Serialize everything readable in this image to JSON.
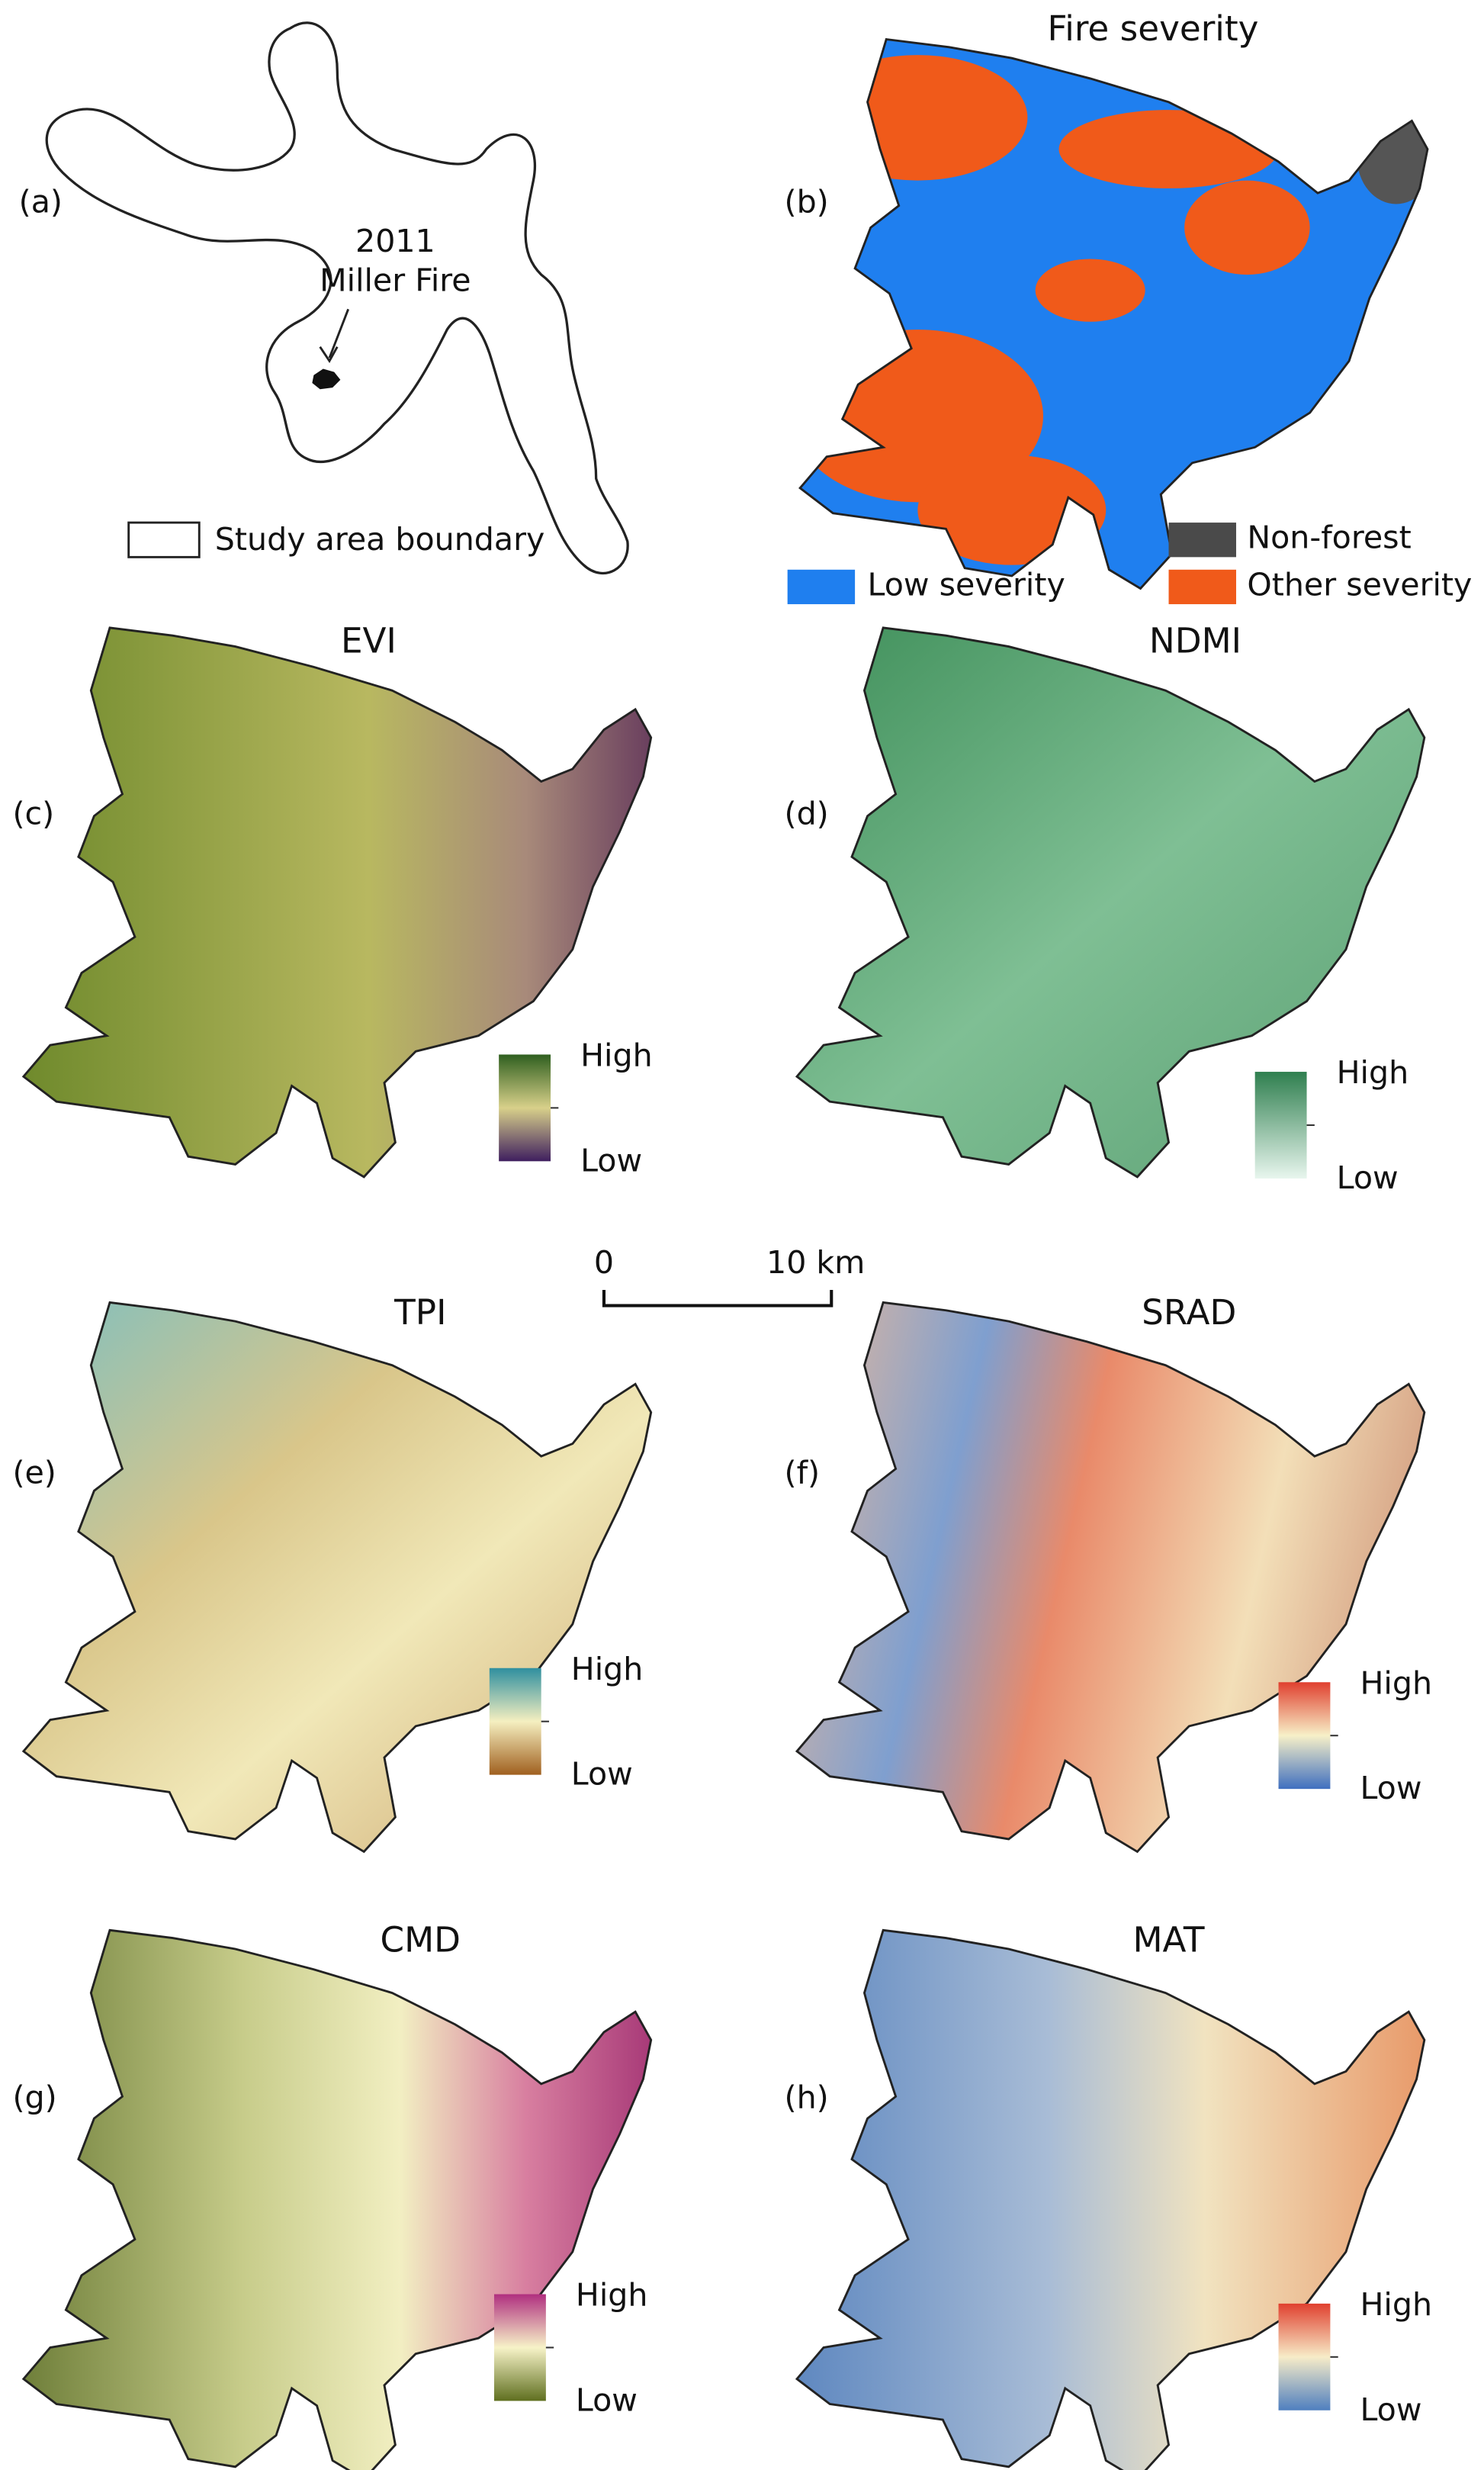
{
  "panel_a": {
    "letter": "(a)",
    "annotation_line1": "2011",
    "annotation_line2": "Miller Fire",
    "legend": "Study area boundary"
  },
  "panel_b": {
    "letter": "(b)",
    "title": "Fire severity",
    "legend": [
      "Low severity",
      "Non-forest",
      "Other severity"
    ]
  },
  "panels": [
    {
      "letter": "(c)",
      "title": "EVI",
      "high": "High",
      "low": "Low"
    },
    {
      "letter": "(d)",
      "title": "NDMI",
      "high": "High",
      "low": "Low"
    },
    {
      "letter": "(e)",
      "title": "TPI",
      "high": "High",
      "low": "Low"
    },
    {
      "letter": "(f)",
      "title": "SRAD",
      "high": "High",
      "low": "Low"
    },
    {
      "letter": "(g)",
      "title": "CMD",
      "high": "High",
      "low": "Low"
    },
    {
      "letter": "(h)",
      "title": "MAT",
      "high": "High",
      "low": "Low"
    }
  ],
  "scale_bar": {
    "start": "0",
    "end": "10 km"
  }
}
